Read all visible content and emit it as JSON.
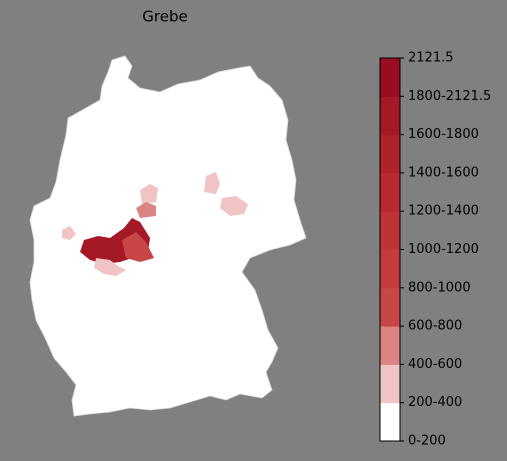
{
  "title": "Grebe",
  "legend": {
    "labels": [
      "0-200",
      "200-400",
      "400-600",
      "600-800",
      "800-1000",
      "1000-1200",
      "1200-1400",
      "1400-1600",
      "1600-1800",
      "1800-2121.5",
      "2121.5"
    ],
    "colors": [
      "#ffffff",
      "#f0c4c4",
      "#dc8484",
      "#c94646",
      "#c43c3d",
      "#bf3336",
      "#b92a30",
      "#b0222a",
      "#a51825",
      "#980d20"
    ]
  }
}
